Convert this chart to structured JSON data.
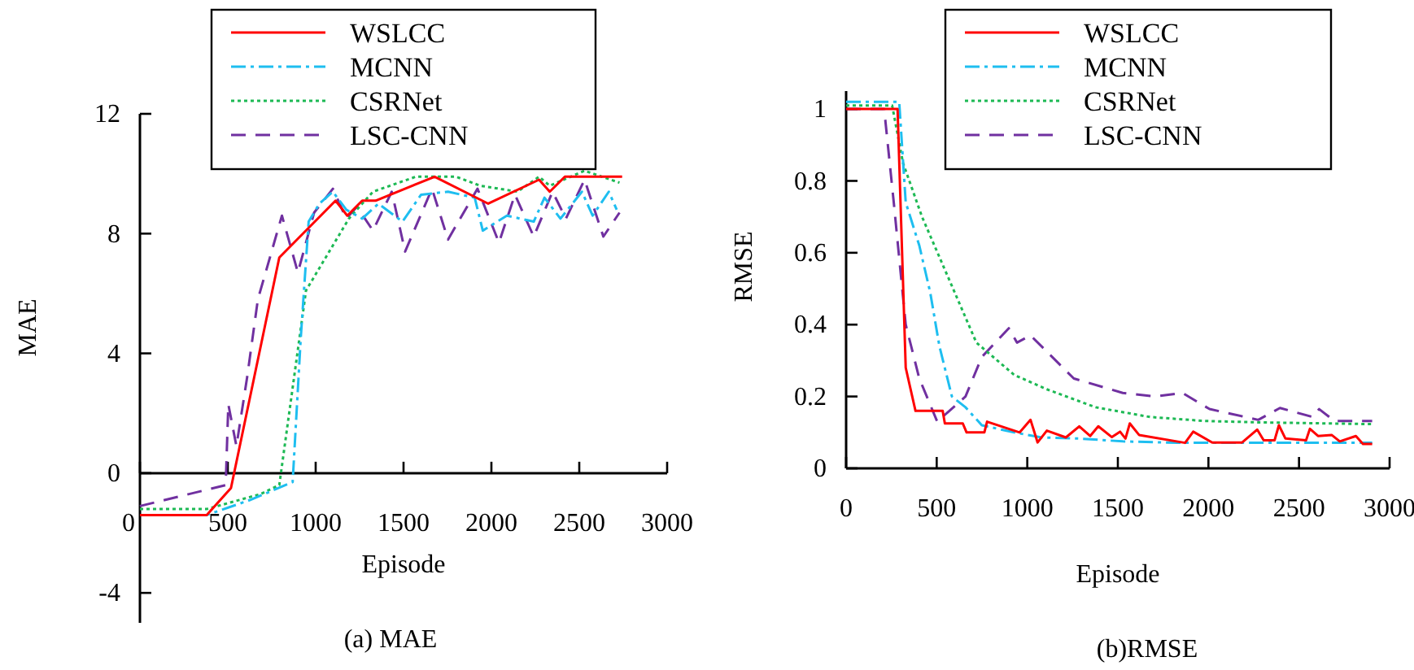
{
  "chart_data": [
    {
      "type": "line",
      "xlabel": "Episode",
      "ylabel": "MAE",
      "annotations": [
        "(a) MAE"
      ],
      "xlim": [
        0,
        3000
      ],
      "ylim": [
        -5,
        12
      ],
      "xticks": [
        0,
        500,
        1000,
        1500,
        2000,
        2500,
        3000
      ],
      "yticks": [
        -4,
        0,
        4,
        8,
        12
      ],
      "legend": "top",
      "grid": false,
      "series": [
        {
          "name": "WSLCC",
          "color": "#ff0000",
          "line_style": "solid",
          "x": [
            0,
            380,
            518,
            793,
            1113,
            1180,
            1265,
            1341,
            1677,
            1982,
            2271,
            2332,
            2418,
            2744
          ],
          "values": [
            -1.4,
            -1.4,
            -0.5,
            7.2,
            9.1,
            8.6,
            9.1,
            9.1,
            9.9,
            9.0,
            9.8,
            9.4,
            9.9,
            9.9
          ]
        },
        {
          "name": "MCNN",
          "color": "#1ebef0",
          "line_style": "dashdot",
          "x": [
            0,
            380,
            625,
            869,
            915,
            960,
            1021,
            1098,
            1174,
            1265,
            1357,
            1494,
            1600,
            1753,
            1905,
            1951,
            2088,
            2241,
            2302,
            2393,
            2515,
            2576,
            2668,
            2713
          ],
          "values": [
            -1.4,
            -1.4,
            -0.9,
            -0.3,
            4.5,
            8.4,
            9.0,
            9.4,
            8.8,
            8.5,
            9.0,
            8.4,
            9.3,
            9.4,
            9.2,
            8.1,
            8.6,
            8.4,
            9.2,
            8.5,
            9.4,
            8.6,
            9.4,
            8.8
          ]
        },
        {
          "name": "CSRNet",
          "color": "#1db954",
          "line_style": "dotted",
          "x": [
            0,
            380,
            686,
            793,
            945,
            1189,
            1326,
            1570,
            1799,
            1936,
            2149,
            2271,
            2332,
            2530,
            2729
          ],
          "values": [
            -1.2,
            -1.2,
            -0.7,
            -0.4,
            6.1,
            8.5,
            9.4,
            9.9,
            9.9,
            9.6,
            9.4,
            9.9,
            9.6,
            10.1,
            9.7
          ]
        },
        {
          "name": "LSC-CNN",
          "color": "#7030a0",
          "line_style": "dashed",
          "x": [
            0,
            488,
            503,
            549,
            610,
            671,
            808,
            899,
            991,
            1098,
            1174,
            1235,
            1326,
            1433,
            1509,
            1662,
            1753,
            1921,
            2043,
            2134,
            2241,
            2348,
            2424,
            2530,
            2637,
            2729
          ],
          "values": [
            -1.1,
            -0.4,
            2.3,
            0.9,
            3.2,
            5.8,
            8.6,
            6.7,
            8.7,
            9.5,
            8.5,
            8.9,
            8.1,
            9.4,
            7.4,
            9.5,
            7.8,
            9.5,
            7.7,
            9.3,
            7.9,
            9.4,
            8.5,
            9.8,
            7.9,
            8.7
          ]
        }
      ]
    },
    {
      "type": "line",
      "xlabel": "Episode",
      "ylabel": "RMSE",
      "annotations": [
        "(b)RMSE"
      ],
      "xlim": [
        0,
        3000
      ],
      "ylim": [
        0,
        1.05
      ],
      "xticks": [
        0,
        500,
        1000,
        1500,
        2000,
        2500,
        3000
      ],
      "yticks": [
        0,
        0.2,
        0.4,
        0.6,
        0.8,
        1
      ],
      "legend": "top",
      "grid": false,
      "series": [
        {
          "name": "WSLCC",
          "color": "#ff0000",
          "line_style": "solid",
          "x": [
            0,
            284,
            329,
            383,
            533,
            545,
            644,
            665,
            763,
            778,
            958,
            1018,
            1057,
            1108,
            1213,
            1287,
            1347,
            1392,
            1467,
            1512,
            1542,
            1566,
            1617,
            1871,
            1916,
            2021,
            2186,
            2269,
            2305,
            2365,
            2389,
            2425,
            2539,
            2560,
            2605,
            2680,
            2725,
            2814,
            2853,
            2904
          ],
          "values": [
            1.0,
            1.0,
            0.28,
            0.16,
            0.16,
            0.125,
            0.125,
            0.1,
            0.1,
            0.13,
            0.1,
            0.135,
            0.072,
            0.105,
            0.086,
            0.117,
            0.09,
            0.117,
            0.087,
            0.102,
            0.083,
            0.125,
            0.093,
            0.071,
            0.102,
            0.072,
            0.072,
            0.108,
            0.078,
            0.078,
            0.12,
            0.083,
            0.078,
            0.11,
            0.09,
            0.093,
            0.075,
            0.09,
            0.068,
            0.068
          ]
        },
        {
          "name": "MCNN",
          "color": "#1ebef0",
          "line_style": "dashdot",
          "x": [
            0,
            293,
            329,
            404,
            464,
            515,
            584,
            659,
            749,
            928,
            1078,
            1287,
            1527,
            1826,
            2126,
            2904
          ],
          "values": [
            1.02,
            1.02,
            0.74,
            0.62,
            0.49,
            0.34,
            0.2,
            0.17,
            0.12,
            0.1,
            0.086,
            0.083,
            0.075,
            0.071,
            0.071,
            0.071
          ]
        },
        {
          "name": "CSRNet",
          "color": "#1db954",
          "line_style": "dotted",
          "x": [
            0,
            254,
            314,
            419,
            539,
            719,
            928,
            1108,
            1377,
            1677,
            1976,
            2275,
            2904
          ],
          "values": [
            1.01,
            1.01,
            0.85,
            0.7,
            0.56,
            0.35,
            0.26,
            0.22,
            0.17,
            0.143,
            0.132,
            0.128,
            0.123
          ]
        },
        {
          "name": "LSC-CNN",
          "color": "#7030a0",
          "line_style": "dashed",
          "x": [
            0,
            210,
            263,
            329,
            404,
            503,
            659,
            749,
            898,
            943,
            1018,
            1257,
            1527,
            1707,
            1856,
            2006,
            2275,
            2395,
            2575,
            2611,
            2695,
            2904
          ],
          "values": [
            1.0,
            1.0,
            0.74,
            0.4,
            0.25,
            0.13,
            0.2,
            0.31,
            0.39,
            0.35,
            0.37,
            0.25,
            0.21,
            0.2,
            0.21,
            0.165,
            0.135,
            0.168,
            0.143,
            0.165,
            0.132,
            0.132
          ]
        }
      ]
    }
  ]
}
